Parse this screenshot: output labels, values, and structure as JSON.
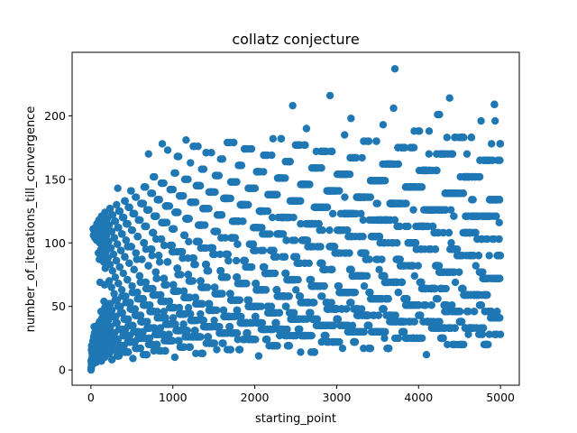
{
  "chart_data": {
    "type": "scatter",
    "title": "collatz conjecture",
    "xlabel": "starting_point",
    "ylabel": "number_of_iterations_till_convergence",
    "xlim": [
      -230,
      5230
    ],
    "ylim": [
      -12,
      250
    ],
    "xticks": [
      0,
      1000,
      2000,
      3000,
      4000,
      5000
    ],
    "yticks": [
      0,
      50,
      100,
      150,
      200
    ],
    "grid": false,
    "legend": "none",
    "point_color": "#1f77b4",
    "x_start": 1,
    "x_end": 5000,
    "x_step": 1,
    "y_rule": "count of Collatz steps (n -> n/2 if even, 3n+1 if odd) until n reaches 1",
    "notable_points": [
      {
        "x": 27,
        "y": 111
      },
      {
        "x": 871,
        "y": 178
      },
      {
        "x": 2463,
        "y": 208
      },
      {
        "x": 2919,
        "y": 216
      },
      {
        "x": 3711,
        "y": 237
      },
      {
        "x": 4255,
        "y": 201
      },
      {
        "x": 4591,
        "y": 170
      },
      {
        "x": 1161,
        "y": 181
      }
    ]
  }
}
